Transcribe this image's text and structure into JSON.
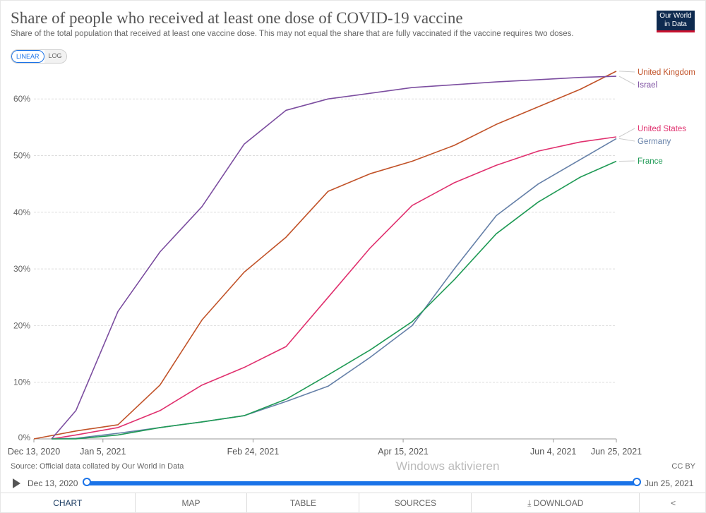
{
  "header": {
    "title": "Share of people who received at least one dose of COVID-19 vaccine",
    "subtitle": "Share of the total population that received at least one vaccine dose. This may not equal the share that are fully vaccinated if the vaccine requires two doses.",
    "logo": "Our World in Data"
  },
  "scale_toggle": {
    "linear": "LINEAR",
    "log": "LOG",
    "selected": "LINEAR"
  },
  "footer": {
    "source": "Source: Official data collated by Our World in Data",
    "license": "CC BY"
  },
  "timeline": {
    "start": "Dec 13, 2020",
    "end": "Jun 25, 2021"
  },
  "tabs": [
    "CHART",
    "MAP",
    "TABLE",
    "SOURCES",
    "DOWNLOAD"
  ],
  "active_tab": "CHART",
  "watermark": "Windows aktivieren",
  "chart_data": {
    "type": "line",
    "xlim": [
      "2020-12-13",
      "2021-06-25"
    ],
    "ylim": [
      0,
      65
    ],
    "grid": "horizontal",
    "legend": "right end labels",
    "x_ticks": [
      {
        "date": "2020-12-13",
        "label": "Dec 13, 2020"
      },
      {
        "date": "2021-01-05",
        "label": "Jan 5, 2021"
      },
      {
        "date": "2021-02-24",
        "label": "Feb 24, 2021"
      },
      {
        "date": "2021-04-15",
        "label": "Apr 15, 2021"
      },
      {
        "date": "2021-06-04",
        "label": "Jun 4, 2021"
      },
      {
        "date": "2021-06-25",
        "label": "Jun 25, 2021"
      }
    ],
    "y_ticks": [
      {
        "value": 0,
        "label": "0%"
      },
      {
        "value": 10,
        "label": "10%"
      },
      {
        "value": 20,
        "label": "20%"
      },
      {
        "value": 30,
        "label": "30%"
      },
      {
        "value": 40,
        "label": "40%"
      },
      {
        "value": 50,
        "label": "50%"
      },
      {
        "value": 60,
        "label": "60%"
      }
    ],
    "x": [
      "2020-12-13",
      "2020-12-27",
      "2021-01-10",
      "2021-01-24",
      "2021-02-07",
      "2021-02-21",
      "2021-03-07",
      "2021-03-21",
      "2021-04-04",
      "2021-04-18",
      "2021-05-02",
      "2021-05-16",
      "2021-05-30",
      "2021-06-13",
      "2021-06-25"
    ],
    "series": [
      {
        "name": "United Kingdom",
        "color": "#c15228",
        "values": [
          0,
          1.4,
          2.5,
          9.5,
          21,
          29.4,
          35.6,
          43.7,
          46.8,
          49,
          51.8,
          55.5,
          58.6,
          61.7,
          64.9
        ]
      },
      {
        "name": "Israel",
        "color": "#7c4ea0",
        "values": [
          null,
          5,
          22.5,
          33,
          41,
          52,
          58,
          60,
          61,
          62,
          62.5,
          63,
          63.4,
          63.8,
          64
        ]
      },
      {
        "name": "United States",
        "color": "#e0306e",
        "values": [
          null,
          0.7,
          2,
          5,
          9.5,
          12.6,
          16.3,
          25,
          33.7,
          41.2,
          45.2,
          48.3,
          50.8,
          52.4,
          53.3
        ]
      },
      {
        "name": "Germany",
        "color": "#6580a8",
        "values": [
          null,
          0.1,
          1,
          2,
          3,
          4.1,
          6.6,
          9.3,
          14.4,
          20,
          30,
          39.4,
          45,
          49.3,
          53
        ]
      },
      {
        "name": "France",
        "color": "#1f9a55",
        "values": [
          null,
          0,
          0.7,
          2,
          3,
          4.1,
          7,
          11.3,
          15.7,
          20.7,
          28.1,
          36.2,
          41.8,
          46.2,
          49
        ]
      }
    ]
  }
}
